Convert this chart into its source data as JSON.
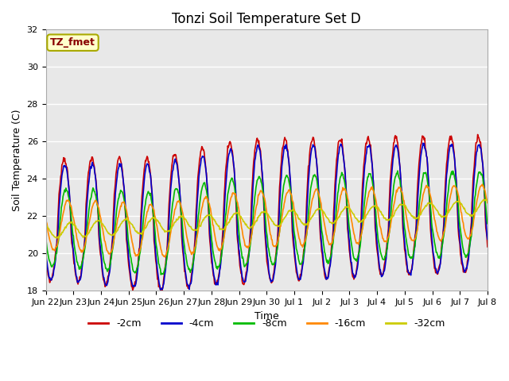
{
  "title": "Tonzi Soil Temperature Set D",
  "xlabel": "Time",
  "ylabel": "Soil Temperature (C)",
  "ylim": [
    18,
    32
  ],
  "series_colors": [
    "#cc0000",
    "#0000cc",
    "#00bb00",
    "#ff8800",
    "#cccc00"
  ],
  "series_labels": [
    "-2cm",
    "-4cm",
    "-8cm",
    "-16cm",
    "-32cm"
  ],
  "series_linewidths": [
    1.2,
    1.2,
    1.2,
    1.2,
    1.2
  ],
  "xtick_labels": [
    "Jun 22",
    "Jun 23",
    "Jun 24",
    "Jun 25",
    "Jun 26",
    "Jun 27",
    "Jun 28",
    "Jun 29",
    "Jun 30",
    "Jul 1",
    "Jul 2",
    "Jul 3",
    "Jul 4",
    "Jul 5",
    "Jul 6",
    "Jul 7",
    "Jul 8"
  ],
  "annotation_text": "TZ_fmet",
  "annotation_color": "#880000",
  "annotation_bg": "#ffffcc",
  "annotation_border": "#aaaa00",
  "background_plot": "#e8e8e8",
  "background_fig": "#ffffff",
  "grid_color": "#ffffff",
  "title_fontsize": 12,
  "axis_fontsize": 9,
  "tick_fontsize": 8,
  "legend_fontsize": 9
}
